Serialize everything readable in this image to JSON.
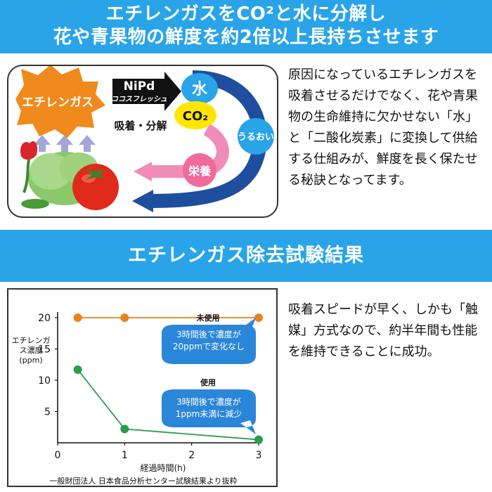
{
  "header": {
    "line1": "エチレンガスをCO²と水に分解し",
    "line2": "花や青果物の鮮度を約2倍以上長持ちさせます"
  },
  "diagram": {
    "gas_label": "エチレンガス",
    "catalyst_name": "NiPd",
    "catalyst_brand": "ココスフレッシュ",
    "process_label": "吸着・分解",
    "water_label": "水",
    "co2_label": "CO₂",
    "moisture_label": "うるおい",
    "nutrition_label": "栄養",
    "colors": {
      "blue_arrow": "#1f4e9e",
      "pink_arrow": "#f08cb8",
      "gas_star": "#f08a1c",
      "water_bubble": "#2aa4e8",
      "co2_bubble": "#ffe600",
      "tomato": "#e02a1a"
    }
  },
  "explanation": {
    "text": "原因になっているエチレンガスを吸着させるだけでなく、花や青果物の生命維持に欠かせない「水」と「二酸化炭素」に変換して供給する仕組みが、鮮度を長く保たせる秘訣となってます。"
  },
  "section_title": "エチレンガス除去試験結果",
  "chart_data": {
    "type": "line",
    "ylabel": "エチレンガス濃度(ppm)",
    "xlabel": "経過時間(h)",
    "xlim": [
      0,
      3
    ],
    "ylim": [
      0,
      20
    ],
    "x_ticks": [
      0,
      1,
      2,
      3
    ],
    "y_ticks": [
      5,
      10,
      15,
      20
    ],
    "grid": false,
    "series": [
      {
        "name": "未使用",
        "color": "#e8821e",
        "x": [
          0.3,
          1,
          3
        ],
        "values": [
          20,
          20,
          20
        ]
      },
      {
        "name": "使用",
        "color": "#2a9d4a",
        "x": [
          0.3,
          1,
          3
        ],
        "values": [
          11.7,
          2.2,
          0.5
        ]
      }
    ],
    "annotations": [
      {
        "series": "未使用",
        "text": "3時間後で濃度が20ppmで変化なし"
      },
      {
        "series": "使用",
        "text": "3時間後で濃度が1ppm未満に減少"
      }
    ],
    "source": "一般財団法人 日本食品分析センター試験結果より抜粋"
  },
  "result": {
    "text": "吸着スピードが早く、しかも「触媒」方式なので、約半年間も性能を維持できることに成功。"
  }
}
